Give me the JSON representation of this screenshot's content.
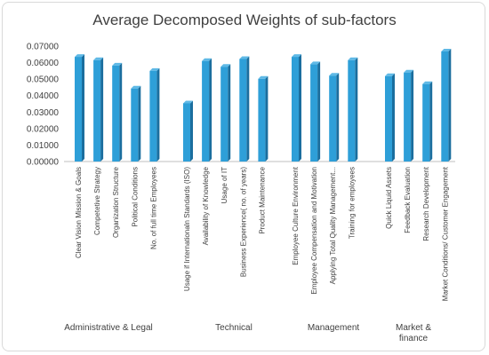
{
  "chart_data": {
    "type": "bar",
    "title": "Average Decomposed Weights of sub-factors",
    "xlabel": "",
    "ylabel": "",
    "ylim": [
      0,
      0.07
    ],
    "yticks": [
      "0.00000",
      "0.01000",
      "0.02000",
      "0.03000",
      "0.04000",
      "0.05000",
      "0.06000",
      "0.07000"
    ],
    "grid": false,
    "legend": "none",
    "bar_color": "#2E9FD8",
    "bar_dark": "#1B6E9E",
    "groups": [
      {
        "name": "Administrative & Legal",
        "name_lines": [
          "Administrative & Legal"
        ],
        "categories": [
          "Clear Vision Mission & Goals",
          "Competetive Strategy",
          "Organization Structure",
          "Political Conditions",
          "No. of full time Employees"
        ],
        "values": [
          0.0635,
          0.0615,
          0.0582,
          0.0443,
          0.055
        ]
      },
      {
        "name": "Technical",
        "name_lines": [
          "Technical"
        ],
        "categories": [
          "Usage if Internationaln Standards (ISO)",
          "Availability of Knowledge",
          "Usage of IT",
          "Business Experience( no. of years)",
          "Product Maintenance"
        ],
        "values": [
          0.0353,
          0.061,
          0.0575,
          0.0622,
          0.0502
        ]
      },
      {
        "name": "Management",
        "name_lines": [
          "Management"
        ],
        "categories": [
          "Employee Culture Environment",
          "Employee Compensation and Motivation",
          "Applying Total Quality Management...",
          "Training for employees"
        ],
        "values": [
          0.0635,
          0.059,
          0.0521,
          0.0615
        ]
      },
      {
        "name": "Market & finance",
        "name_lines": [
          "Market &",
          "finance"
        ],
        "categories": [
          "Quick Liquid Assets",
          "Feedback Evaluation",
          "Research Development",
          "Market Conditions/ Customer Engagement"
        ],
        "values": [
          0.0518,
          0.054,
          0.047,
          0.0668
        ]
      }
    ]
  }
}
